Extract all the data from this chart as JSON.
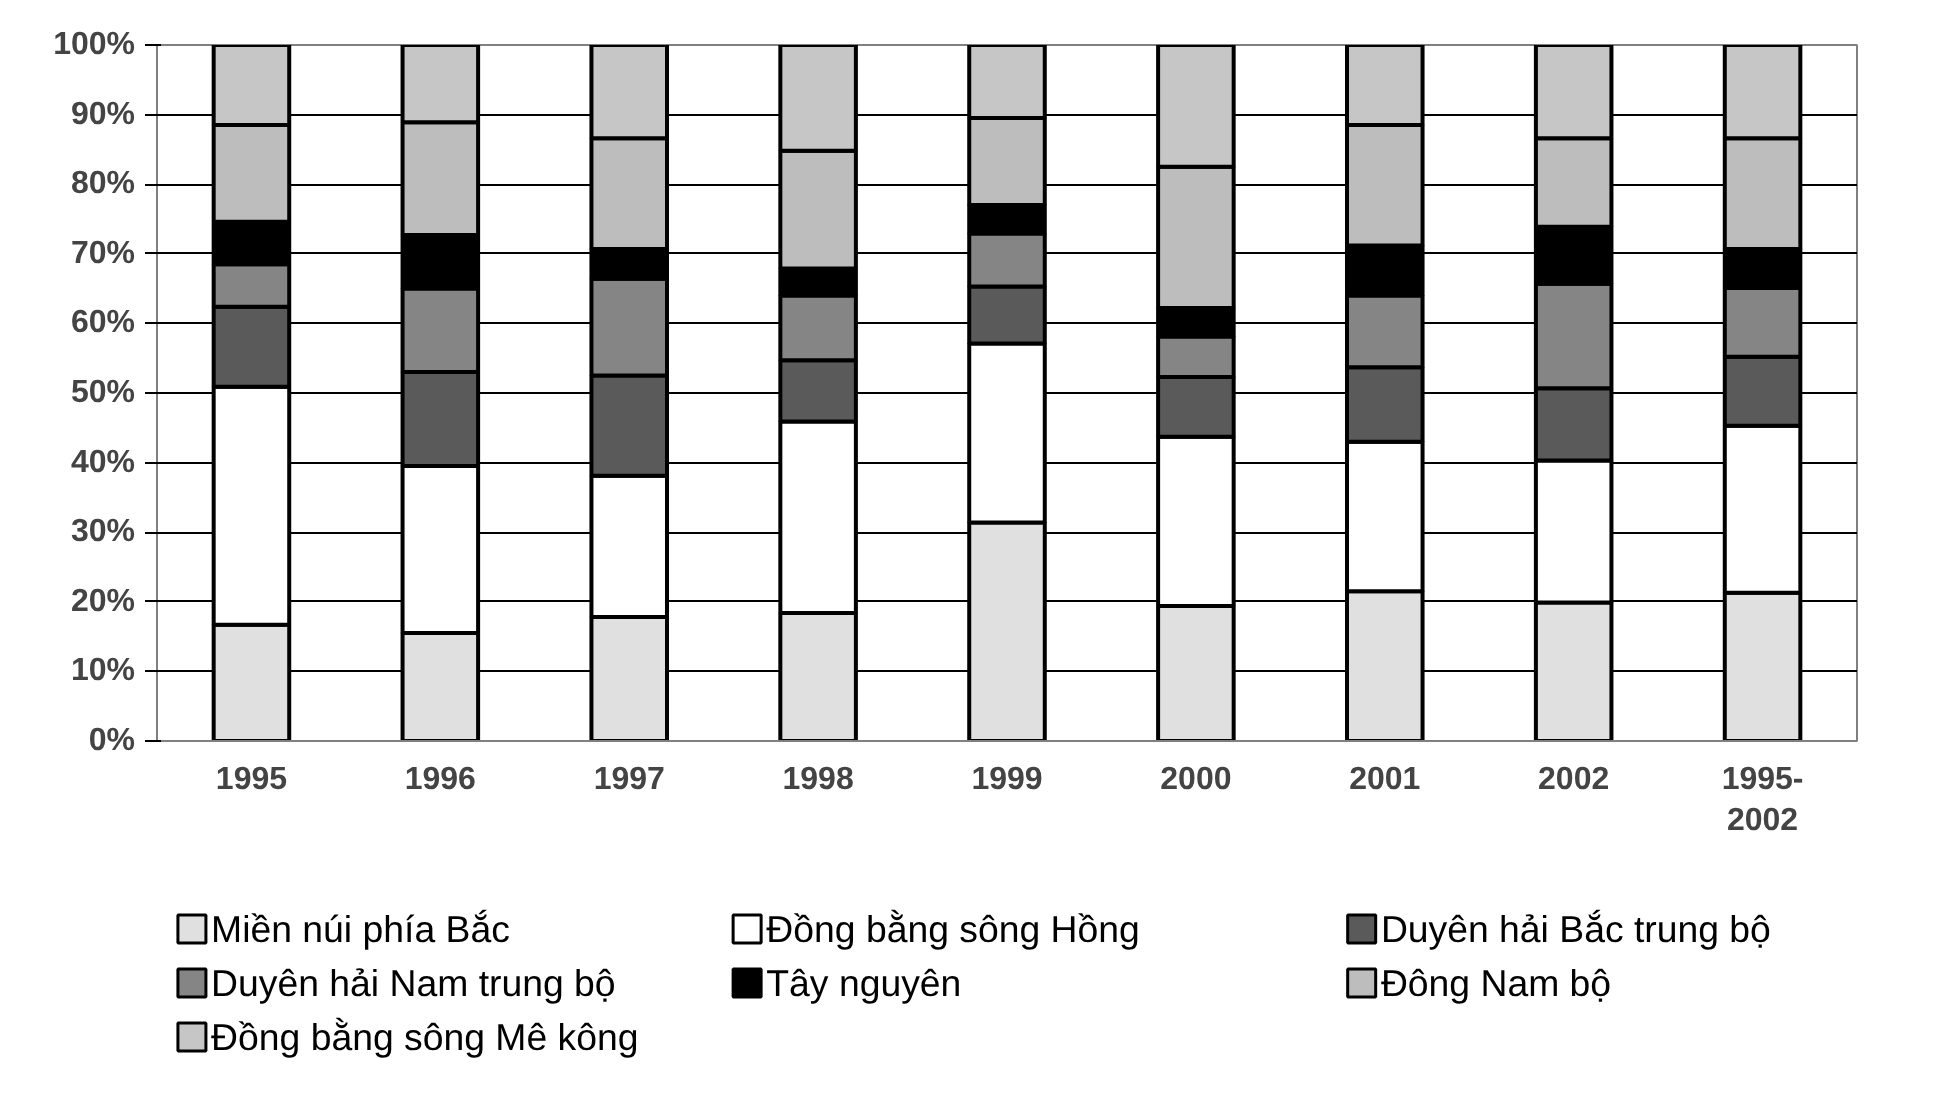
{
  "chart_data": {
    "type": "bar",
    "stacked": true,
    "categories": [
      "1995",
      "1996",
      "1997",
      "1998",
      "1999",
      "2000",
      "2001",
      "2002",
      "1995-\n2002"
    ],
    "series": [
      {
        "name": "Miền núi phía Bắc",
        "color": "#e0e0e0",
        "values": [
          16.7,
          15.5,
          17.8,
          18.4,
          31.4,
          19.4,
          21.5,
          19.9,
          21.3
        ]
      },
      {
        "name": "Đồng bằng sông Hồng",
        "color": "#ffffff",
        "values": [
          34.2,
          24.0,
          20.3,
          27.5,
          25.7,
          24.3,
          21.5,
          20.4,
          24.0
        ]
      },
      {
        "name": "Duyên hải Bắc trung bộ",
        "color": "#5a5a5a",
        "values": [
          11.5,
          13.5,
          14.4,
          8.8,
          8.2,
          8.6,
          10.7,
          10.4,
          9.9
        ]
      },
      {
        "name": "Duyên hải Nam trung bộ",
        "color": "#858585",
        "values": [
          6.1,
          12.0,
          13.9,
          9.3,
          7.6,
          5.8,
          10.3,
          15.0,
          9.9
        ]
      },
      {
        "name": "Tây nguyên",
        "color": "#000000",
        "values": [
          6.1,
          7.7,
          4.3,
          3.9,
          4.1,
          4.1,
          7.2,
          8.2,
          5.6
        ]
      },
      {
        "name": "Đông Nam bộ",
        "color": "#bdbdbd",
        "values": [
          13.9,
          16.2,
          15.9,
          16.9,
          12.5,
          20.3,
          17.3,
          12.7,
          15.9
        ]
      },
      {
        "name": "Đồng bằng sông Mê kông",
        "color": "#c6c6c6",
        "values": [
          11.5,
          11.1,
          13.4,
          15.2,
          10.5,
          17.5,
          11.5,
          13.4,
          13.4
        ]
      }
    ],
    "ylim": [
      0,
      100
    ],
    "yticks": [
      {
        "value": 0,
        "label": "0%"
      },
      {
        "value": 10,
        "label": "10%"
      },
      {
        "value": 20,
        "label": "20%"
      },
      {
        "value": 30,
        "label": "30%"
      },
      {
        "value": 40,
        "label": "40%"
      },
      {
        "value": 50,
        "label": "50%"
      },
      {
        "value": 60,
        "label": "60%"
      },
      {
        "value": 70,
        "label": "70%"
      },
      {
        "value": 80,
        "label": "80%"
      },
      {
        "value": 90,
        "label": "90%"
      },
      {
        "value": 100,
        "label": "100%"
      }
    ],
    "grid": "y",
    "legend": "bottom"
  }
}
